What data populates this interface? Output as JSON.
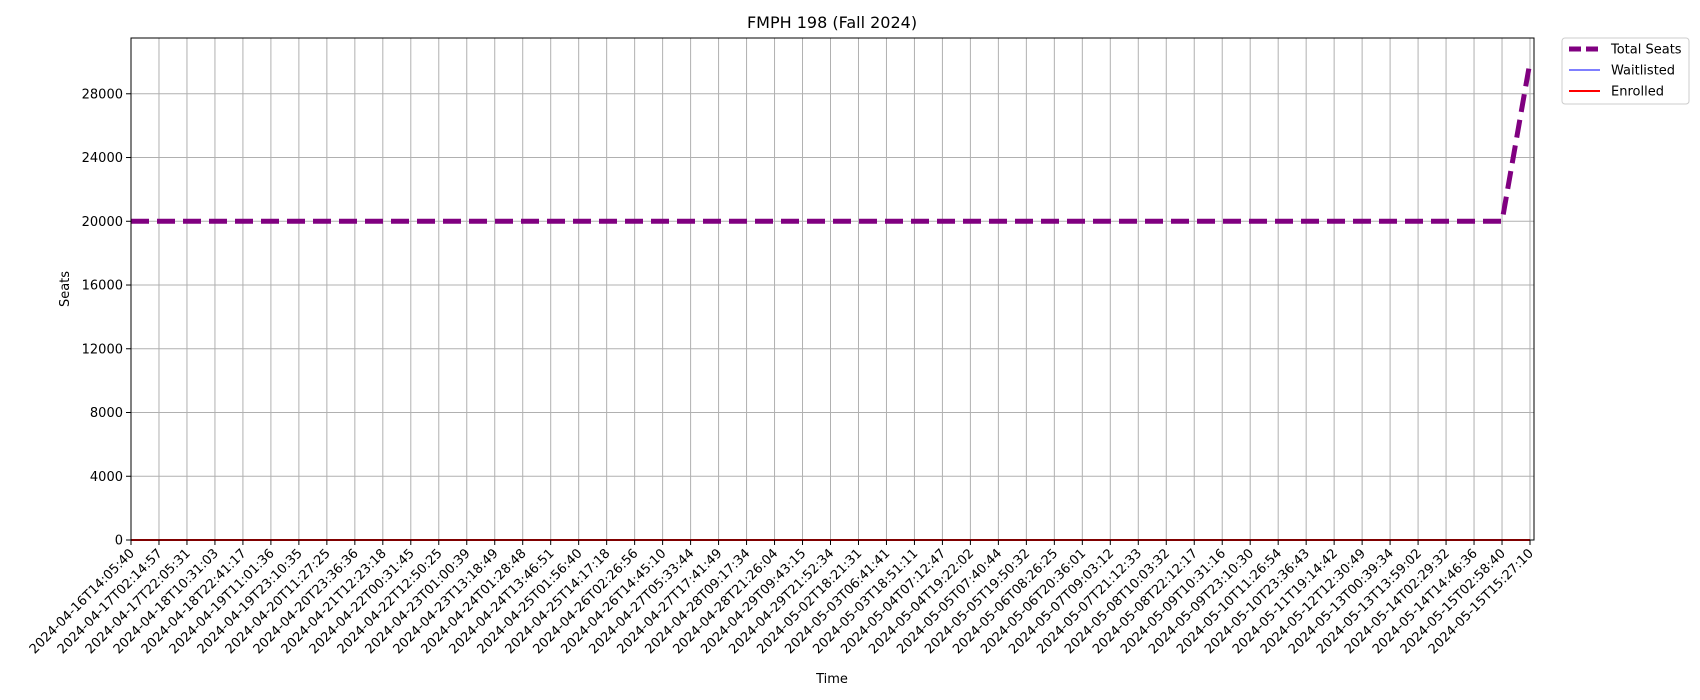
{
  "chart_data": {
    "type": "line",
    "title": "FMPH 198 (Fall 2024)",
    "xlabel": "Time",
    "ylabel": "Seats",
    "ylim": [
      0,
      31500
    ],
    "yticks": [
      0,
      4000,
      8000,
      12000,
      16000,
      20000,
      24000,
      28000
    ],
    "grid": true,
    "legend_position": "outside-top-right",
    "x": [
      "2024-04-16T14:05:40",
      "2024-04-17T02:14:57",
      "2024-04-17T22:05:31",
      "2024-04-18T10:31:03",
      "2024-04-18T22:41:17",
      "2024-04-19T11:01:36",
      "2024-04-19T23:10:35",
      "2024-04-20T11:27:25",
      "2024-04-20T23:36:36",
      "2024-04-21T12:23:18",
      "2024-04-22T00:31:45",
      "2024-04-22T12:50:25",
      "2024-04-23T01:00:39",
      "2024-04-23T13:18:49",
      "2024-04-24T01:28:48",
      "2024-04-24T13:46:51",
      "2024-04-25T01:56:40",
      "2024-04-25T14:17:18",
      "2024-04-26T02:26:56",
      "2024-04-26T14:45:10",
      "2024-04-27T05:33:44",
      "2024-04-27T17:41:49",
      "2024-04-28T09:17:34",
      "2024-04-28T21:26:04",
      "2024-04-29T09:43:15",
      "2024-04-29T21:52:34",
      "2024-05-02T18:21:31",
      "2024-05-03T06:41:41",
      "2024-05-03T18:51:11",
      "2024-05-04T07:12:47",
      "2024-05-04T19:22:02",
      "2024-05-05T07:40:44",
      "2024-05-05T19:50:32",
      "2024-05-06T08:26:25",
      "2024-05-06T20:36:01",
      "2024-05-07T09:03:12",
      "2024-05-07T21:12:33",
      "2024-05-08T10:03:32",
      "2024-05-08T22:12:17",
      "2024-05-09T10:31:16",
      "2024-05-09T23:10:30",
      "2024-05-10T11:26:54",
      "2024-05-10T23:36:43",
      "2024-05-11T19:14:42",
      "2024-05-12T12:30:49",
      "2024-05-13T00:39:34",
      "2024-05-13T13:59:02",
      "2024-05-14T02:29:32",
      "2024-05-14T14:46:36",
      "2024-05-15T02:58:40",
      "2024-05-15T15:27:10"
    ],
    "series": [
      {
        "name": "Total Seats",
        "color": "#800080",
        "style": "dashed",
        "values": [
          20000,
          20000,
          20000,
          20000,
          20000,
          20000,
          20000,
          20000,
          20000,
          20000,
          20000,
          20000,
          20000,
          20000,
          20000,
          20000,
          20000,
          20000,
          20000,
          20000,
          20000,
          20000,
          20000,
          20000,
          20000,
          20000,
          20000,
          20000,
          20000,
          20000,
          20000,
          20000,
          20000,
          20000,
          20000,
          20000,
          20000,
          20000,
          20000,
          20000,
          20000,
          20000,
          20000,
          20000,
          20000,
          20000,
          20000,
          20000,
          20000,
          20000,
          30000
        ]
      },
      {
        "name": "Waitlisted",
        "color": "#3333ff",
        "style": "solid-thin",
        "values": [
          0,
          0,
          0,
          0,
          0,
          0,
          0,
          0,
          0,
          0,
          0,
          0,
          0,
          0,
          0,
          0,
          0,
          0,
          0,
          0,
          0,
          0,
          0,
          0,
          0,
          0,
          0,
          0,
          0,
          0,
          0,
          0,
          0,
          0,
          0,
          0,
          0,
          0,
          0,
          0,
          0,
          0,
          0,
          0,
          0,
          0,
          0,
          0,
          0,
          0,
          0
        ]
      },
      {
        "name": "Enrolled",
        "color": "#ff0000",
        "style": "solid",
        "values": [
          0,
          0,
          0,
          0,
          0,
          0,
          0,
          0,
          0,
          0,
          0,
          0,
          0,
          0,
          0,
          0,
          0,
          0,
          0,
          0,
          0,
          0,
          0,
          0,
          0,
          0,
          0,
          0,
          0,
          0,
          0,
          0,
          0,
          0,
          0,
          0,
          0,
          0,
          0,
          0,
          0,
          0,
          0,
          0,
          0,
          0,
          0,
          0,
          0,
          0,
          0
        ]
      }
    ]
  }
}
